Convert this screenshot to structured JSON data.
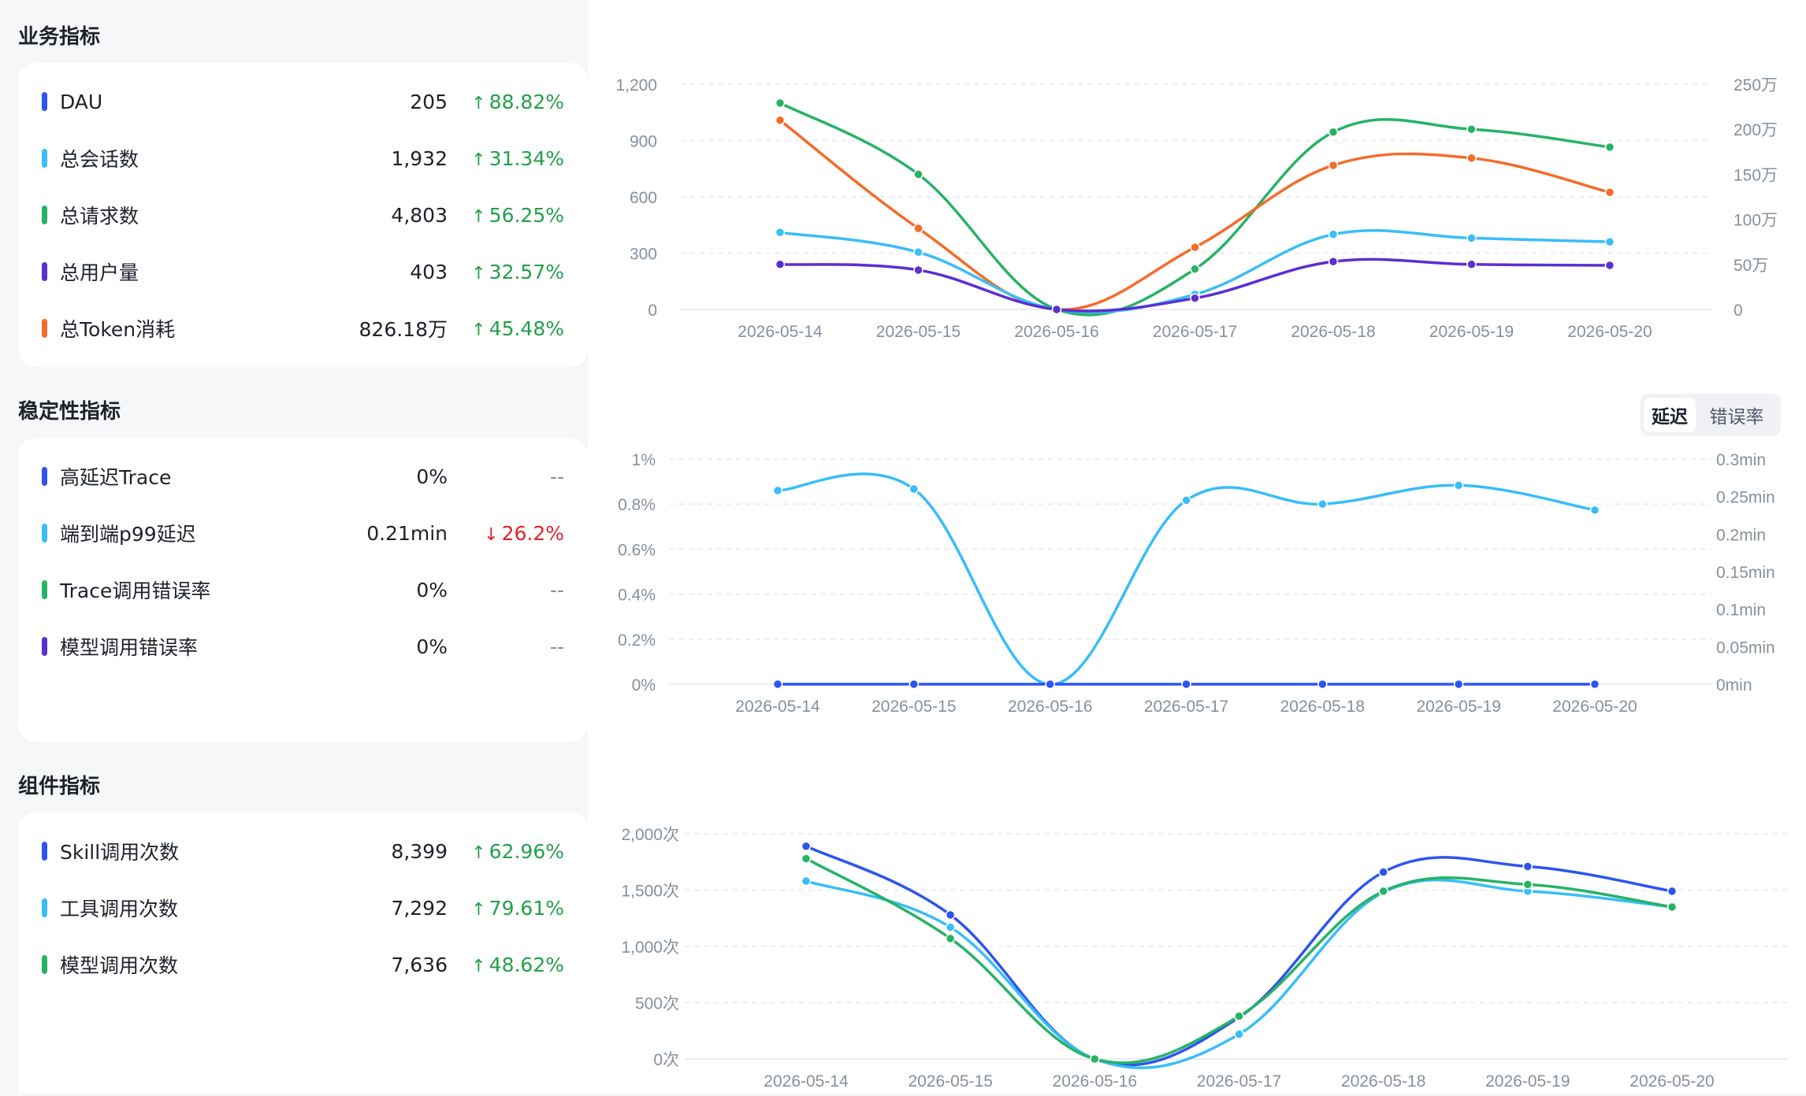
{
  "sections": {
    "business": {
      "title": "业务指标",
      "items": [
        {
          "label": "DAU",
          "value": "205",
          "change": "88.82%",
          "dir": "up",
          "color": "#2d54f0"
        },
        {
          "label": "总会话数",
          "value": "1,932",
          "change": "31.34%",
          "dir": "up",
          "color": "#38bdf8"
        },
        {
          "label": "总请求数",
          "value": "4,803",
          "change": "56.25%",
          "dir": "up",
          "color": "#27b366"
        },
        {
          "label": "总用户量",
          "value": "403",
          "change": "32.57%",
          "dir": "up",
          "color": "#5b2fd0"
        },
        {
          "label": "总Token消耗",
          "value": "826.18万",
          "change": "45.48%",
          "dir": "up",
          "color": "#f56b2a"
        }
      ]
    },
    "stability": {
      "title": "稳定性指标",
      "items": [
        {
          "label": "高延迟Trace",
          "value": "0%",
          "change": "--",
          "dir": "flat",
          "color": "#2d54f0"
        },
        {
          "label": "端到端p99延迟",
          "value": "0.21min",
          "change": "26.2%",
          "dir": "down",
          "color": "#38bdf8"
        },
        {
          "label": "Trace调用错误率",
          "value": "0%",
          "change": "--",
          "dir": "flat",
          "color": "#27b366"
        },
        {
          "label": "模型调用错误率",
          "value": "0%",
          "change": "--",
          "dir": "flat",
          "color": "#5b2fd0"
        }
      ]
    },
    "component": {
      "title": "组件指标",
      "items": [
        {
          "label": "Skill调用次数",
          "value": "8,399",
          "change": "62.96%",
          "dir": "up",
          "color": "#2d54f0"
        },
        {
          "label": "工具调用次数",
          "value": "7,292",
          "change": "79.61%",
          "dir": "up",
          "color": "#38bdf8"
        },
        {
          "label": "模型调用次数",
          "value": "7,636",
          "change": "48.62%",
          "dir": "up",
          "color": "#27b366"
        }
      ]
    }
  },
  "arrows": {
    "up": "↑",
    "down": "↓"
  },
  "toggle": {
    "options": [
      "延迟",
      "错误率"
    ],
    "active": "延迟"
  },
  "chart_data": [
    {
      "type": "line",
      "title": "",
      "x": [
        "2026-05-14",
        "2026-05-15",
        "2026-05-16",
        "2026-05-17",
        "2026-05-18",
        "2026-05-19",
        "2026-05-20"
      ],
      "left_axis": {
        "ticks": [
          "0",
          "300",
          "600",
          "900",
          "1,200"
        ],
        "ylim": [
          0,
          1200
        ]
      },
      "right_axis": {
        "ticks": [
          "0",
          "50万",
          "100万",
          "150万",
          "200万",
          "250万"
        ],
        "ylim": [
          0,
          2500000
        ]
      },
      "grid": true,
      "series": [
        {
          "color": "#27b366",
          "axis": "left",
          "values": [
            1100,
            720,
            0,
            215,
            945,
            960,
            865
          ]
        },
        {
          "color": "#f56b2a",
          "axis": "right",
          "values": [
            2100000,
            900000,
            0,
            690000,
            1600000,
            1680000,
            1300000
          ]
        },
        {
          "color": "#38bdf8",
          "axis": "left",
          "values": [
            410,
            305,
            0,
            80,
            400,
            380,
            360
          ]
        },
        {
          "color": "#5b2fd0",
          "axis": "left",
          "values": [
            240,
            210,
            0,
            60,
            255,
            240,
            235
          ]
        }
      ]
    },
    {
      "type": "line",
      "title": "",
      "x": [
        "2026-05-14",
        "2026-05-15",
        "2026-05-16",
        "2026-05-17",
        "2026-05-18",
        "2026-05-19",
        "2026-05-20"
      ],
      "left_axis": {
        "ticks": [
          "0%",
          "0.2%",
          "0.4%",
          "0.6%",
          "0.8%",
          "1%"
        ],
        "ylim": [
          0,
          1
        ]
      },
      "right_axis": {
        "ticks": [
          "0min",
          "0.05min",
          "0.1min",
          "0.15min",
          "0.2min",
          "0.25min",
          "0.3min"
        ],
        "ylim": [
          0,
          0.3
        ]
      },
      "grid": true,
      "series": [
        {
          "color": "#38bdf8",
          "axis": "right",
          "values": [
            0.258,
            0.26,
            0,
            0.245,
            0.24,
            0.265,
            0.232
          ]
        },
        {
          "color": "#2d54f0",
          "axis": "left",
          "values": [
            0,
            0,
            0,
            0,
            0,
            0,
            0
          ]
        }
      ]
    },
    {
      "type": "line",
      "title": "",
      "x": [
        "2026-05-14",
        "2026-05-15",
        "2026-05-16",
        "2026-05-17",
        "2026-05-18",
        "2026-05-19",
        "2026-05-20"
      ],
      "left_axis": {
        "ticks": [
          "0次",
          "500次",
          "1,000次",
          "1,500次",
          "2,000次"
        ],
        "ylim": [
          0,
          2000
        ]
      },
      "grid": true,
      "series": [
        {
          "color": "#2d54f0",
          "axis": "left",
          "values": [
            1890,
            1280,
            0,
            370,
            1660,
            1710,
            1490
          ]
        },
        {
          "color": "#38bdf8",
          "axis": "left",
          "values": [
            1580,
            1170,
            0,
            220,
            1480,
            1490,
            1350
          ]
        },
        {
          "color": "#27b366",
          "axis": "left",
          "values": [
            1780,
            1070,
            0,
            380,
            1490,
            1550,
            1350
          ]
        }
      ]
    }
  ]
}
